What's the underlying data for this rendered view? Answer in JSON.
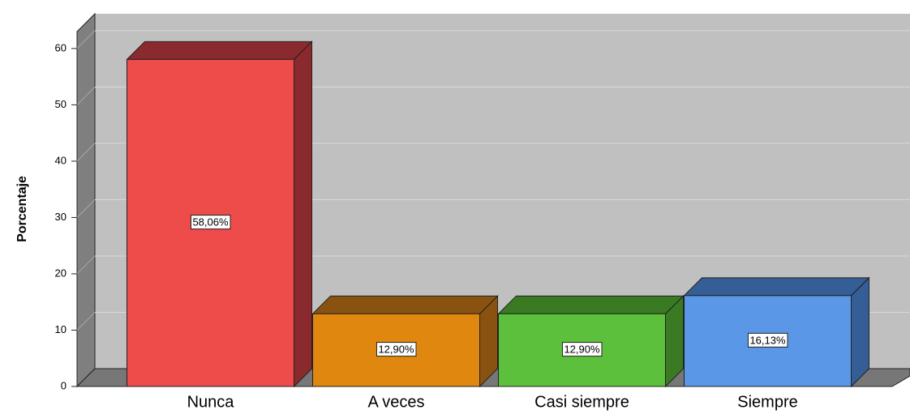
{
  "chart_data": {
    "type": "bar3d",
    "y_label": "Porcentaje",
    "categories": [
      "Nunca",
      "A veces",
      "Casi siempre",
      "Siempre"
    ],
    "values": [
      58.06,
      12.9,
      12.9,
      16.13
    ],
    "value_labels": [
      "58,06%",
      "12,90%",
      "12,90%",
      "16,13%"
    ],
    "colors": [
      "#ee4b4b",
      "#e0870f",
      "#5cc03c",
      "#5a97e6"
    ],
    "side_colors": [
      "#8b2a2e",
      "#8a5210",
      "#3a7a22",
      "#345e95"
    ],
    "ylim": [
      0,
      63
    ],
    "yticks": [
      0,
      10,
      20,
      30,
      40,
      50,
      60
    ],
    "grid": true
  }
}
